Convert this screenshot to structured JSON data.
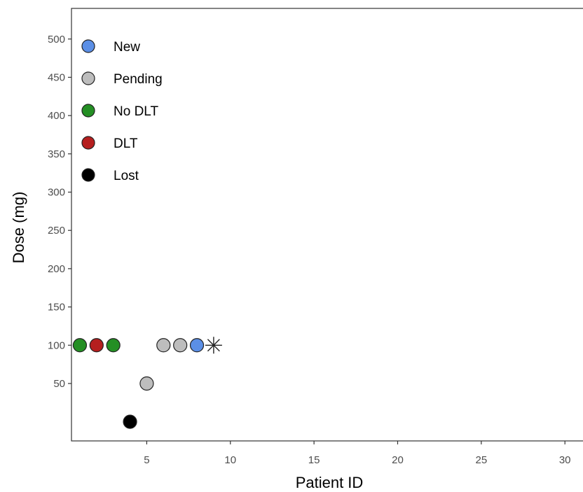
{
  "chart_data": {
    "type": "scatter",
    "title": "",
    "xlabel": "Patient ID",
    "ylabel": "Dose (mg)",
    "xlim": [
      0.5,
      31.5
    ],
    "ylim": [
      -25,
      540
    ],
    "x_ticks": [
      5,
      10,
      15,
      20,
      25,
      30
    ],
    "y_ticks": [
      50,
      100,
      150,
      200,
      250,
      300,
      350,
      400,
      450,
      500
    ],
    "grid": false,
    "legend_position": "top-left",
    "legend": [
      {
        "label": "New",
        "color": "#5b8fe6"
      },
      {
        "label": "Pending",
        "color": "#bdbdbd"
      },
      {
        "label": "No DLT",
        "color": "#248f24"
      },
      {
        "label": "DLT",
        "color": "#b51f1f"
      },
      {
        "label": "Lost",
        "color": "#000000"
      }
    ],
    "points": [
      {
        "x": 1,
        "y": 100,
        "status": "No DLT"
      },
      {
        "x": 2,
        "y": 100,
        "status": "DLT"
      },
      {
        "x": 3,
        "y": 100,
        "status": "No DLT"
      },
      {
        "x": 4,
        "y": 0,
        "status": "Lost"
      },
      {
        "x": 5,
        "y": 50,
        "status": "Pending"
      },
      {
        "x": 6,
        "y": 100,
        "status": "Pending"
      },
      {
        "x": 7,
        "y": 100,
        "status": "Pending"
      },
      {
        "x": 8,
        "y": 100,
        "status": "New"
      }
    ],
    "next_dose_marker": {
      "x": 9,
      "y": 100,
      "symbol": "asterisk"
    }
  }
}
